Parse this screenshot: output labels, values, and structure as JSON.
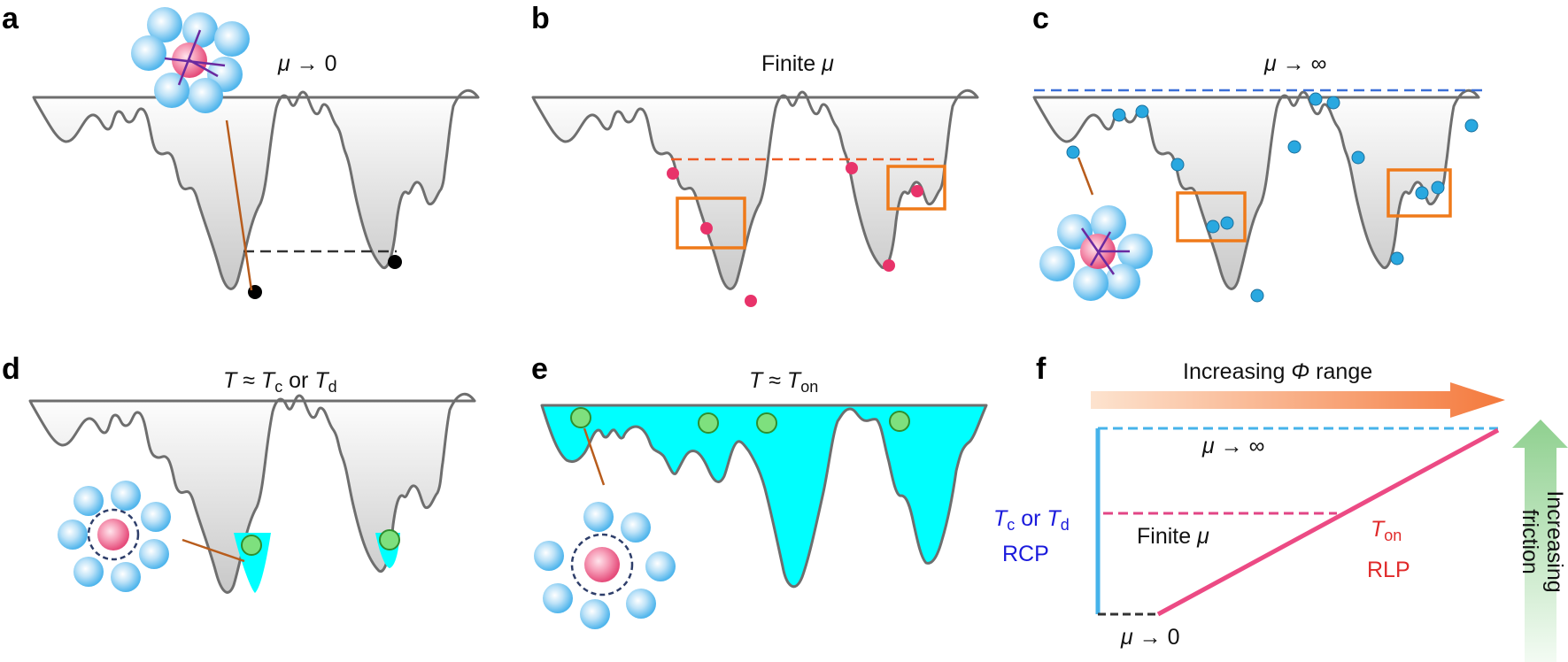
{
  "panels": {
    "a": {
      "letter": "a",
      "mu": "μ",
      "arrow": " → 0"
    },
    "b": {
      "letter": "b",
      "text": "Finite ",
      "mu": "μ"
    },
    "c": {
      "letter": "c",
      "mu": "μ",
      "arrow": " → ∞"
    },
    "d": {
      "letter": "d",
      "T1": "T",
      "approx": " ≈ ",
      "T2": "T",
      "sub_c": "c",
      "or": " or ",
      "T3": "T",
      "sub_d": "d"
    },
    "e": {
      "letter": "e",
      "T1": "T",
      "approx": " ≈ ",
      "T2": "T",
      "sub_on": "on"
    },
    "f": {
      "letter": "f",
      "arrow_top": {
        "text": "Increasing ",
        "phi": "Φ",
        "range": " range"
      },
      "mu_inf": {
        "mu": "μ",
        "arrow": " → ∞"
      },
      "finite": {
        "text": "Finite ",
        "mu": "μ"
      },
      "mu_zero": {
        "mu": "μ",
        "arrow": " → 0"
      },
      "tc": {
        "T1": "T",
        "sub_c": "c",
        "or": " or ",
        "T2": "T",
        "sub_d": "d"
      },
      "rcp": "RCP",
      "ton": {
        "T": "T",
        "sub": "on"
      },
      "rlp": "RLP",
      "friction": [
        "Increasing",
        "friction"
      ]
    }
  },
  "colors": {
    "landscape": "#6e6e6e",
    "particle_red": "#e8336a",
    "particle_blue": "#29a8e0",
    "particle_green": "#7ee07e",
    "box": "#ef7a1a",
    "cyan_fill": "#00ffff",
    "dash_black": "#333333",
    "dash_orange": "#ee5a24",
    "dash_blue": "#3a6fd8",
    "rcp_blue": "#1a1adc",
    "rlp_red": "#e02a2a",
    "line_pink": "#ec4a84",
    "line_blue": "#46b3ea"
  }
}
